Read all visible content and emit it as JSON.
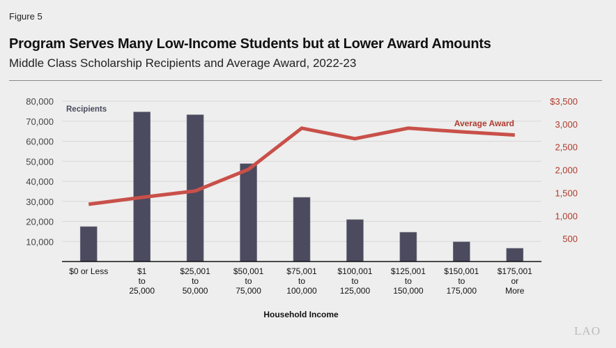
{
  "figure_label": "Figure 5",
  "title": "Program Serves Many Low-Income Students but at Lower Award Amounts",
  "subtitle": "Middle Class Scholarship Recipients and Average Award, 2022-23",
  "logo": "LAO",
  "chart_data": {
    "type": "bar+line",
    "xlabel": "Household Income",
    "categories": [
      [
        "$0 or Less"
      ],
      [
        "$1",
        "to",
        "25,000"
      ],
      [
        "$25,001",
        "to",
        "50,000"
      ],
      [
        "$50,001",
        "to",
        "75,000"
      ],
      [
        "$75,001",
        "to",
        "100,000"
      ],
      [
        "$100,001",
        "to",
        "125,000"
      ],
      [
        "$125,001",
        "to",
        "150,000"
      ],
      [
        "$150,001",
        "to",
        "175,000"
      ],
      [
        "$175,001",
        "or",
        "More"
      ]
    ],
    "series": [
      {
        "name": "Recipients",
        "type": "bar",
        "axis": "left",
        "color": "#4b4a5e",
        "values": [
          17400,
          74600,
          73200,
          48800,
          32000,
          20900,
          14600,
          9800,
          6600
        ]
      },
      {
        "name": "Average Award",
        "type": "line",
        "axis": "right",
        "color": "#c9504a",
        "values": [
          1250,
          1400,
          1540,
          2010,
          2910,
          2680,
          2910,
          2830,
          2760
        ]
      }
    ],
    "left_axis": {
      "ylim": [
        0,
        80000
      ],
      "ticks": [
        "10,000",
        "20,000",
        "30,000",
        "40,000",
        "50,000",
        "60,000",
        "70,000",
        "80,000"
      ],
      "tick_values": [
        10000,
        20000,
        30000,
        40000,
        50000,
        60000,
        70000,
        80000
      ],
      "color": "#444"
    },
    "right_axis": {
      "ylim": [
        0,
        3500
      ],
      "ticks": [
        "500",
        "1,000",
        "1,500",
        "2,000",
        "2,500",
        "3,000",
        "$3,500"
      ],
      "tick_values": [
        500,
        1000,
        1500,
        2000,
        2500,
        3000,
        3500
      ],
      "color": "#b03a2e"
    },
    "grid": true
  }
}
